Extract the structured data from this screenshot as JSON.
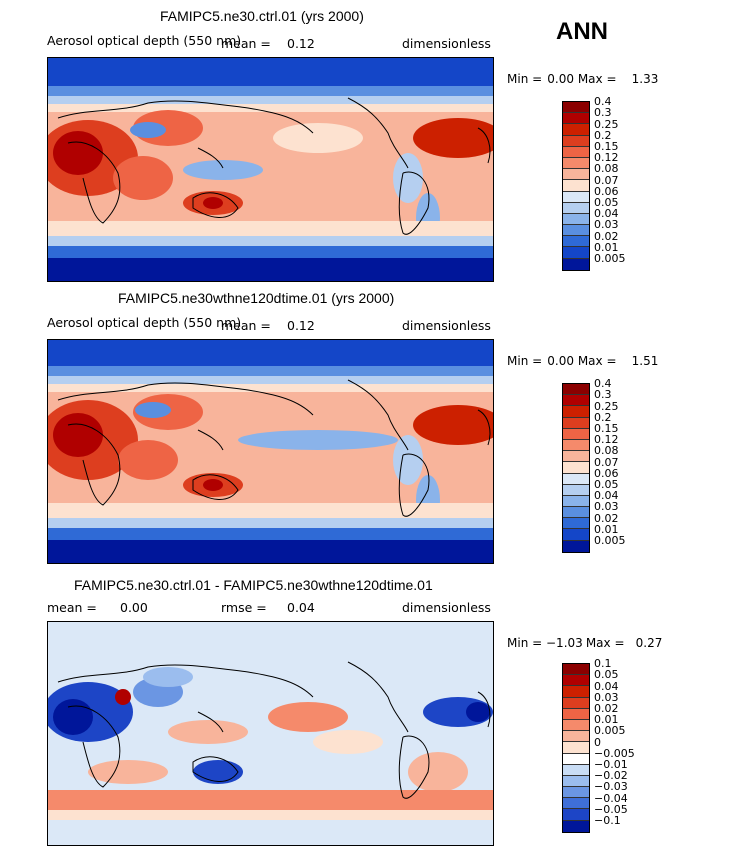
{
  "season": "ANN",
  "panels": [
    {
      "title": "FAMIPC5.ne30.ctrl.01 (yrs 2000)",
      "field": "Aerosol optical depth (550 nm)",
      "mean_label": "mean =",
      "mean": "0.12",
      "units": "dimensionless",
      "min_label": "Min =",
      "min": "0.00",
      "max_label": "Max =",
      "max": "1.33",
      "levels": [
        "0.4",
        "0.3",
        "0.25",
        "0.2",
        "0.15",
        "0.12",
        "0.08",
        "0.07",
        "0.06",
        "0.05",
        "0.04",
        "0.03",
        "0.02",
        "0.01",
        "0.005"
      ]
    },
    {
      "title": "FAMIPC5.ne30wthne120dtime.01 (yrs 2000)",
      "field": "Aerosol optical depth (550 nm)",
      "mean_label": "mean =",
      "mean": "0.12",
      "units": "dimensionless",
      "min_label": "Min =",
      "min": "0.00",
      "max_label": "Max =",
      "max": "1.51",
      "levels": [
        "0.4",
        "0.3",
        "0.25",
        "0.2",
        "0.15",
        "0.12",
        "0.08",
        "0.07",
        "0.06",
        "0.05",
        "0.04",
        "0.03",
        "0.02",
        "0.01",
        "0.005"
      ]
    },
    {
      "title": "FAMIPC5.ne30.ctrl.01 - FAMIPC5.ne30wthne120dtime.01",
      "mean_label": "mean =",
      "mean": "0.00",
      "rmse_label": "rmse =",
      "rmse": "0.04",
      "units": "dimensionless",
      "min_label": "Min =",
      "min": "−1.03",
      "max_label": "Max =",
      "max": "0.27",
      "levels": [
        "0.1",
        "0.05",
        "0.04",
        "0.03",
        "0.02",
        "0.01",
        "0.005",
        "0",
        "−0.005",
        "−0.01",
        "−0.02",
        "−0.03",
        "−0.04",
        "−0.05",
        "−0.1"
      ]
    }
  ],
  "colors": {
    "aod_scale": [
      "#8b0000",
      "#b00000",
      "#cc2000",
      "#dd3e1f",
      "#ee6445",
      "#f58a6b",
      "#f8b49b",
      "#fde2d0",
      "#dbe8f7",
      "#b5cff0",
      "#8ab3ea",
      "#5a8fe0",
      "#2f6ad6",
      "#1446c8",
      "#00169a"
    ],
    "diff_scale": [
      "#8b0000",
      "#b00000",
      "#cc2000",
      "#dd3e1f",
      "#ee6445",
      "#f58a6b",
      "#f8b49b",
      "#fde2d0",
      "#ffffff",
      "#c9ddf5",
      "#9bbdee",
      "#6b96e3",
      "#3f6fd8",
      "#1d45c6",
      "#00169a"
    ],
    "coastline": "#000000"
  }
}
